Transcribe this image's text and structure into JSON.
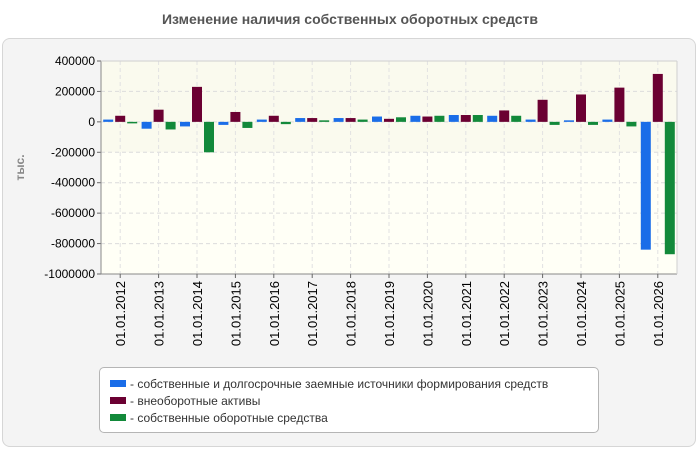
{
  "chart_data": {
    "type": "bar",
    "title": "Изменение наличия собственных оборотных средств",
    "ylabel": "тыс.",
    "xlabel": "",
    "ylim": [
      -1000000,
      400000
    ],
    "yticks": [
      400000,
      200000,
      0,
      -200000,
      -400000,
      -600000,
      -800000,
      -1000000
    ],
    "grid": true,
    "legend_position": "bottom",
    "categories": [
      "01.01.2012",
      "01.01.2013",
      "01.01.2014",
      "01.01.2015",
      "01.01.2016",
      "01.01.2017",
      "01.01.2018",
      "01.01.2019",
      "01.01.2020",
      "01.01.2021",
      "01.01.2022",
      "01.01.2023",
      "01.01.2024",
      "01.01.2025",
      "01.01.2026"
    ],
    "series": [
      {
        "name": "собственные и долгосрочные заемные источники формирования средств",
        "color": "#1a6de8",
        "values": [
          15000,
          -45000,
          -30000,
          -20000,
          15000,
          25000,
          25000,
          35000,
          40000,
          45000,
          40000,
          15000,
          10000,
          15000,
          -840000
        ]
      },
      {
        "name": "внеоборотные активы",
        "color": "#6b0032",
        "values": [
          40000,
          80000,
          230000,
          65000,
          40000,
          25000,
          25000,
          20000,
          35000,
          45000,
          75000,
          145000,
          180000,
          225000,
          315000
        ]
      },
      {
        "name": "собственные оборотные средства",
        "color": "#12893a",
        "values": [
          -10000,
          -50000,
          -200000,
          -40000,
          -15000,
          10000,
          15000,
          30000,
          40000,
          45000,
          40000,
          -20000,
          -20000,
          -30000,
          -870000
        ]
      }
    ]
  }
}
